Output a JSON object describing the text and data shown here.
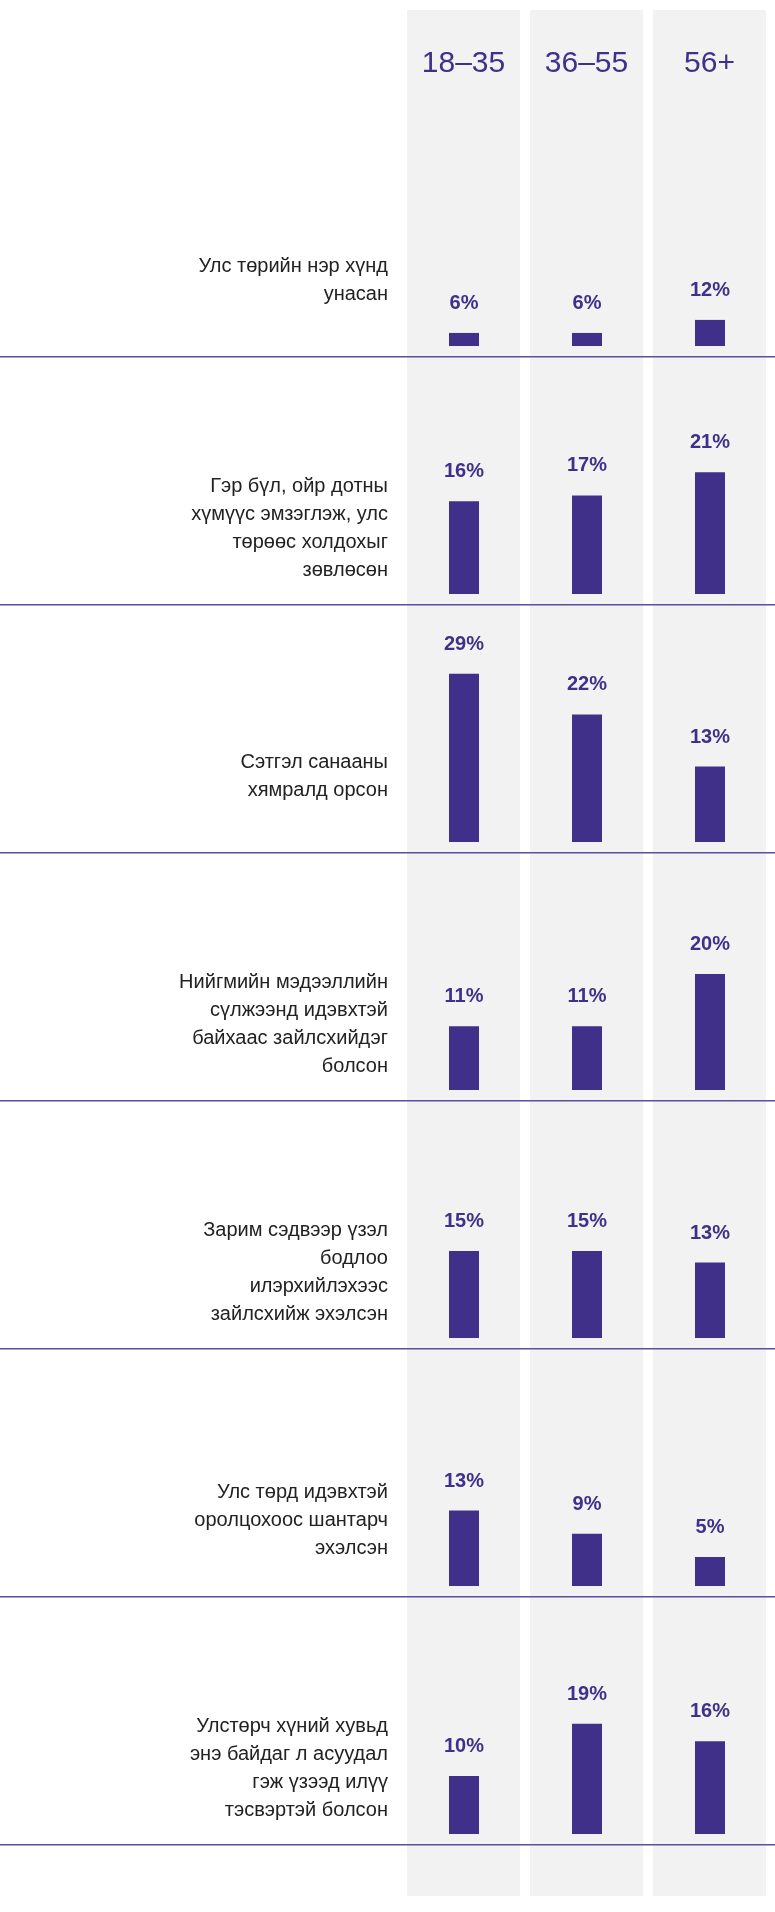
{
  "chart_data": [
    {
      "type": "bar",
      "title": "Улс төрийн нэр хүнд унасан",
      "categories": [
        "18–35",
        "36–55",
        "56+"
      ],
      "values": [
        6,
        6,
        12
      ],
      "value_labels": [
        "6%",
        "6%",
        "12%"
      ],
      "color": "#40308a",
      "tick_labels": "x"
    },
    {
      "type": "bar",
      "title": "Гэр бүл, ойр дотны хүмүүс эмзэглэж, улс төрөөс холдохыг зөвлөсөн",
      "categories": [
        null,
        null,
        null
      ],
      "values": [
        16,
        17,
        21
      ],
      "value_labels": [
        "16%",
        "17%",
        "21%"
      ],
      "color": "#40308a",
      "tick_labels": false
    },
    {
      "type": "bar",
      "title": "Сэтгэл санааны хямралд орсон",
      "categories": [
        null,
        null,
        null
      ],
      "values": [
        29,
        22,
        13
      ],
      "value_labels": [
        "29%",
        "22%",
        "13%"
      ],
      "color": "#40308a",
      "tick_labels": false
    },
    {
      "type": "bar",
      "title": "Нийгмийн мэдээллийн сүлжээнд идэвхтэй байхаас зайлсхийдэг болсон",
      "categories": [
        null,
        null,
        null
      ],
      "values": [
        11,
        11,
        20
      ],
      "value_labels": [
        "11%",
        "11%",
        "20%"
      ],
      "color": "#40308a",
      "tick_labels": false
    },
    {
      "type": "bar",
      "title": "Зарим сэдвээр үзэл бодлоо илэрхийлэхээс зайлсхийж эхэлсэн",
      "categories": [
        null,
        null,
        null
      ],
      "values": [
        15,
        15,
        13
      ],
      "value_labels": [
        "15%",
        "15%",
        "13%"
      ],
      "color": "#40308a",
      "tick_labels": false
    },
    {
      "type": "bar",
      "title": "Улс төрд идэвхтэй оролцохоос шантарч эхэлсэн",
      "categories": [
        null,
        null,
        null
      ],
      "values": [
        13,
        9,
        5
      ],
      "value_labels": [
        "13%",
        "9%",
        "5%"
      ],
      "color": "#40308a",
      "tick_labels": false
    },
    {
      "type": "bar",
      "title": "Улстөрч хүний хувьд энэ байдаг л асуудал гэж үзээд илүү тэсвэртэй болсон",
      "categories": [
        null,
        null,
        null
      ],
      "values": [
        10,
        19,
        16
      ],
      "value_labels": [
        "10%",
        "19%",
        "16%"
      ],
      "color": "#40308a",
      "tick_labels": false
    }
  ]
}
